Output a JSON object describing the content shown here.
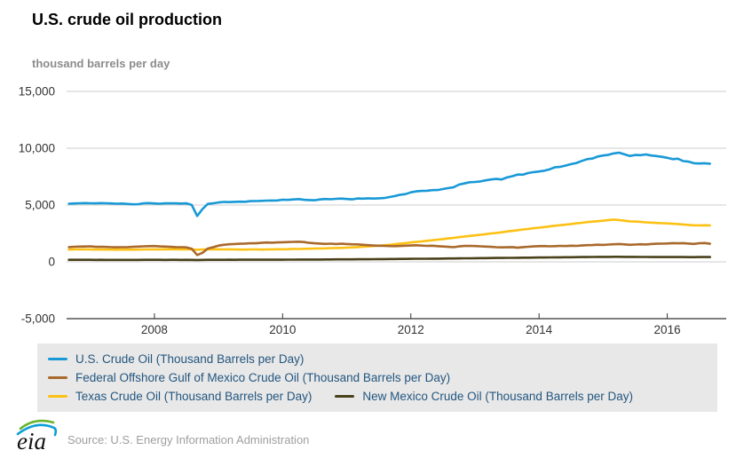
{
  "page": {
    "title": "U.S. crude oil production",
    "subtitle": "thousand barrels per day",
    "source_text": "Source: U.S. Energy Information Administration",
    "logo_text": "eia"
  },
  "colors": {
    "grid": "#cccccc",
    "axis": "#333333",
    "tick_text": "#333333",
    "title_text": "#000000",
    "subtitle_text": "#8c8c8c",
    "legend_bg": "#e8e8e8",
    "legend_text": "#23567f",
    "source_text": "#9e9e9e",
    "logo_green": "#68b52d",
    "logo_blue": "#0c9ed9"
  },
  "chart_data": {
    "type": "line",
    "title": "U.S. crude oil production",
    "ylabel": "thousand barrels per day",
    "xlabel": "",
    "grid": true,
    "legend_position": "bottom",
    "xlim": [
      2006.63,
      2016.92
    ],
    "ylim": [
      -5000,
      15000
    ],
    "x_ticks": [
      2008,
      2010,
      2012,
      2014,
      2016
    ],
    "x_tick_labels": [
      "2008",
      "2010",
      "2012",
      "2014",
      "2016"
    ],
    "y_ticks": [
      15000,
      10000,
      5000,
      0,
      -5000
    ],
    "y_tick_labels": [
      "15,000",
      "10,000",
      "5,000",
      "0",
      "-5,000"
    ],
    "x_start": 2006.6667,
    "points_per_year": 12,
    "x_start_label": "Sep 2006",
    "x_end_label": "Sep 2016",
    "draw_order": [
      2,
      1,
      3,
      0
    ],
    "series": [
      {
        "name": "U.S. Crude Oil (Thousand Barrels per Day)",
        "color": "#1899d6",
        "values": [
          5120,
          5140,
          5160,
          5170,
          5160,
          5150,
          5170,
          5160,
          5140,
          5120,
          5130,
          5090,
          5060,
          5080,
          5160,
          5170,
          5140,
          5120,
          5150,
          5160,
          5150,
          5130,
          5150,
          5010,
          4040,
          4650,
          5100,
          5160,
          5230,
          5270,
          5260,
          5280,
          5300,
          5290,
          5340,
          5350,
          5370,
          5390,
          5400,
          5410,
          5470,
          5450,
          5490,
          5520,
          5460,
          5440,
          5420,
          5490,
          5530,
          5510,
          5550,
          5570,
          5530,
          5500,
          5580,
          5560,
          5590,
          5570,
          5590,
          5620,
          5700,
          5790,
          5910,
          5960,
          6120,
          6200,
          6240,
          6260,
          6310,
          6320,
          6410,
          6490,
          6560,
          6800,
          6900,
          7010,
          7030,
          7080,
          7170,
          7250,
          7300,
          7250,
          7430,
          7540,
          7690,
          7670,
          7820,
          7900,
          7950,
          8020,
          8150,
          8330,
          8370,
          8480,
          8600,
          8700,
          8880,
          9040,
          9090,
          9270,
          9360,
          9420,
          9550,
          9610,
          9460,
          9320,
          9410,
          9390,
          9450,
          9360,
          9310,
          9240,
          9160,
          9040,
          9080,
          8870,
          8820,
          8680,
          8660,
          8680,
          8640
        ]
      },
      {
        "name": "Federal Offshore Gulf of Mexico Crude Oil (Thousand Barrels per Day)",
        "color": "#a9692b",
        "values": [
          1300,
          1330,
          1340,
          1350,
          1370,
          1320,
          1330,
          1310,
          1290,
          1280,
          1290,
          1300,
          1320,
          1340,
          1370,
          1380,
          1390,
          1360,
          1340,
          1320,
          1300,
          1290,
          1270,
          1150,
          600,
          800,
          1170,
          1290,
          1430,
          1500,
          1550,
          1570,
          1590,
          1610,
          1640,
          1630,
          1670,
          1700,
          1690,
          1710,
          1730,
          1740,
          1760,
          1770,
          1740,
          1670,
          1630,
          1610,
          1580,
          1600,
          1570,
          1590,
          1570,
          1550,
          1540,
          1500,
          1470,
          1440,
          1420,
          1410,
          1390,
          1380,
          1400,
          1420,
          1440,
          1460,
          1430,
          1410,
          1420,
          1380,
          1350,
          1320,
          1290,
          1360,
          1400,
          1410,
          1390,
          1370,
          1340,
          1320,
          1290,
          1270,
          1280,
          1300,
          1240,
          1300,
          1330,
          1360,
          1380,
          1390,
          1370,
          1380,
          1410,
          1390,
          1420,
          1410,
          1440,
          1470,
          1480,
          1510,
          1490,
          1520,
          1550,
          1570,
          1540,
          1500,
          1520,
          1550,
          1530,
          1570,
          1590,
          1600,
          1620,
          1650,
          1630,
          1650,
          1610,
          1580,
          1640,
          1660,
          1590
        ]
      },
      {
        "name": "Texas Crude Oil (Thousand Barrels per Day)",
        "color": "#fdc113",
        "values": [
          1080,
          1090,
          1090,
          1100,
          1090,
          1080,
          1090,
          1080,
          1080,
          1070,
          1080,
          1080,
          1070,
          1080,
          1090,
          1090,
          1090,
          1100,
          1100,
          1110,
          1110,
          1100,
          1110,
          1100,
          1060,
          1090,
          1100,
          1110,
          1100,
          1090,
          1100,
          1090,
          1080,
          1080,
          1090,
          1090,
          1080,
          1090,
          1100,
          1110,
          1110,
          1120,
          1140,
          1130,
          1150,
          1160,
          1170,
          1180,
          1190,
          1210,
          1220,
          1230,
          1250,
          1270,
          1300,
          1330,
          1360,
          1390,
          1420,
          1460,
          1500,
          1550,
          1610,
          1650,
          1700,
          1750,
          1800,
          1850,
          1900,
          1950,
          2000,
          2060,
          2110,
          2170,
          2230,
          2280,
          2330,
          2380,
          2440,
          2500,
          2550,
          2600,
          2670,
          2730,
          2780,
          2850,
          2900,
          2960,
          3010,
          3060,
          3120,
          3180,
          3230,
          3280,
          3330,
          3390,
          3440,
          3500,
          3540,
          3580,
          3620,
          3680,
          3720,
          3680,
          3620,
          3560,
          3550,
          3520,
          3480,
          3450,
          3420,
          3400,
          3380,
          3350,
          3330,
          3290,
          3250,
          3220,
          3210,
          3220,
          3210
        ]
      },
      {
        "name": "New Mexico Crude Oil (Thousand Barrels per Day)",
        "color": "#49411a",
        "values": [
          180,
          180,
          180,
          180,
          180,
          175,
          180,
          175,
          175,
          170,
          175,
          175,
          170,
          175,
          180,
          180,
          180,
          180,
          175,
          180,
          180,
          175,
          180,
          175,
          165,
          175,
          180,
          180,
          180,
          180,
          185,
          180,
          185,
          185,
          185,
          190,
          185,
          190,
          190,
          190,
          190,
          195,
          195,
          200,
          200,
          200,
          205,
          205,
          210,
          210,
          215,
          215,
          220,
          220,
          225,
          230,
          230,
          235,
          240,
          245,
          250,
          250,
          255,
          260,
          265,
          270,
          270,
          275,
          280,
          285,
          290,
          295,
          300,
          305,
          310,
          315,
          320,
          325,
          330,
          335,
          340,
          345,
          350,
          355,
          360,
          365,
          370,
          375,
          380,
          385,
          390,
          395,
          400,
          405,
          410,
          415,
          420,
          425,
          430,
          435,
          440,
          440,
          445,
          445,
          440,
          435,
          435,
          430,
          430,
          425,
          425,
          420,
          420,
          420,
          425,
          420,
          415,
          415,
          420,
          425,
          420
        ]
      }
    ]
  }
}
